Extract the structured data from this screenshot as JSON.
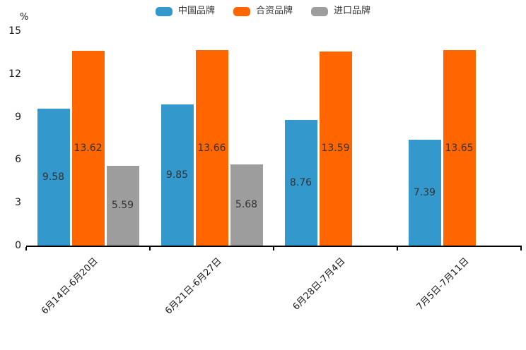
{
  "chart_data": {
    "type": "bar",
    "title": "",
    "unit_label": "%",
    "categories": [
      "6月14日-6月20日",
      "6月21日-6月27日",
      "6月28日-7月4日",
      "7月5日-7月11日"
    ],
    "series": [
      {
        "name": "中国品牌",
        "color": "#3399cc",
        "values": [
          9.58,
          9.85,
          8.76,
          7.39
        ]
      },
      {
        "name": "合资品牌",
        "color": "#ff6600",
        "values": [
          13.62,
          13.66,
          13.59,
          13.65
        ]
      },
      {
        "name": "进口品牌",
        "color": "#9d9d9d",
        "values": [
          5.59,
          5.68,
          null,
          null
        ]
      }
    ],
    "yticks": [
      0,
      3,
      6,
      9,
      12,
      15
    ],
    "ylim": [
      0,
      15
    ],
    "grid": false,
    "legend_position": "top",
    "value_labels": "inside-center",
    "axis_color": "#000000",
    "value_label_color": "#333333"
  }
}
